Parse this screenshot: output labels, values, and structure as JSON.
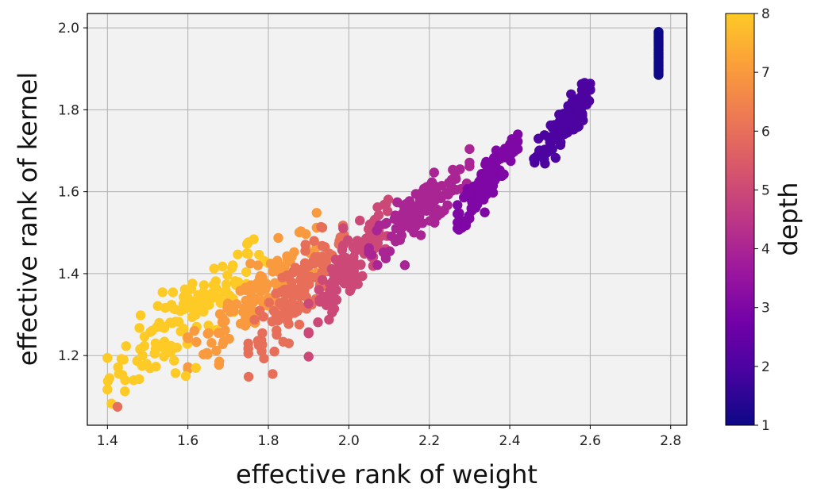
{
  "chart_data": {
    "type": "scatter",
    "title": "",
    "xlabel": "effective rank of weight",
    "ylabel": "effective rank of kernel",
    "xlim": [
      1.35,
      2.84
    ],
    "ylim": [
      1.03,
      2.035
    ],
    "xticks": [
      1.4,
      1.6,
      1.8,
      2.0,
      2.2,
      2.4,
      2.6,
      2.8
    ],
    "yticks": [
      1.2,
      1.4,
      1.6,
      1.8,
      2.0
    ],
    "grid": true,
    "colormap": "plasma",
    "colorbar": {
      "label": "depth",
      "min": 1,
      "max": 8,
      "ticks": [
        1,
        2,
        3,
        4,
        5,
        6,
        7,
        8
      ]
    },
    "clusters": [
      {
        "depth": 1,
        "x": 2.77,
        "y": [
          1.885,
          1.99
        ],
        "count": 22,
        "note": "vertical column of points"
      },
      {
        "depth": 2,
        "x": [
          2.46,
          2.6
        ],
        "y": [
          1.67,
          1.84
        ],
        "count": 110
      },
      {
        "depth": 3,
        "x": [
          2.27,
          2.42
        ],
        "y": [
          1.54,
          1.72
        ],
        "count": 120
      },
      {
        "depth": 4,
        "x": [
          2.05,
          2.3
        ],
        "y": [
          1.46,
          1.65
        ],
        "count": 130
      },
      {
        "depth": 5,
        "x": [
          1.9,
          2.12
        ],
        "y": [
          1.29,
          1.55
        ],
        "count": 120
      },
      {
        "depth": 6,
        "x": [
          1.75,
          2.0
        ],
        "y": [
          1.22,
          1.5
        ],
        "count": 120
      },
      {
        "depth": 7,
        "x": [
          1.6,
          1.92
        ],
        "y": [
          1.2,
          1.48
        ],
        "count": 120
      },
      {
        "depth": 8,
        "x": [
          1.4,
          1.8
        ],
        "y": [
          1.14,
          1.45
        ],
        "count": 120
      }
    ],
    "outliers": [
      {
        "x": 1.405,
        "y": 1.145,
        "depth": 8
      },
      {
        "x": 1.425,
        "y": 1.075,
        "depth": 6
      },
      {
        "x": 1.44,
        "y": 1.19,
        "depth": 8
      },
      {
        "x": 1.465,
        "y": 1.14,
        "depth": 8
      },
      {
        "x": 1.595,
        "y": 1.15,
        "depth": 8
      },
      {
        "x": 1.62,
        "y": 1.17,
        "depth": 8
      }
    ]
  }
}
